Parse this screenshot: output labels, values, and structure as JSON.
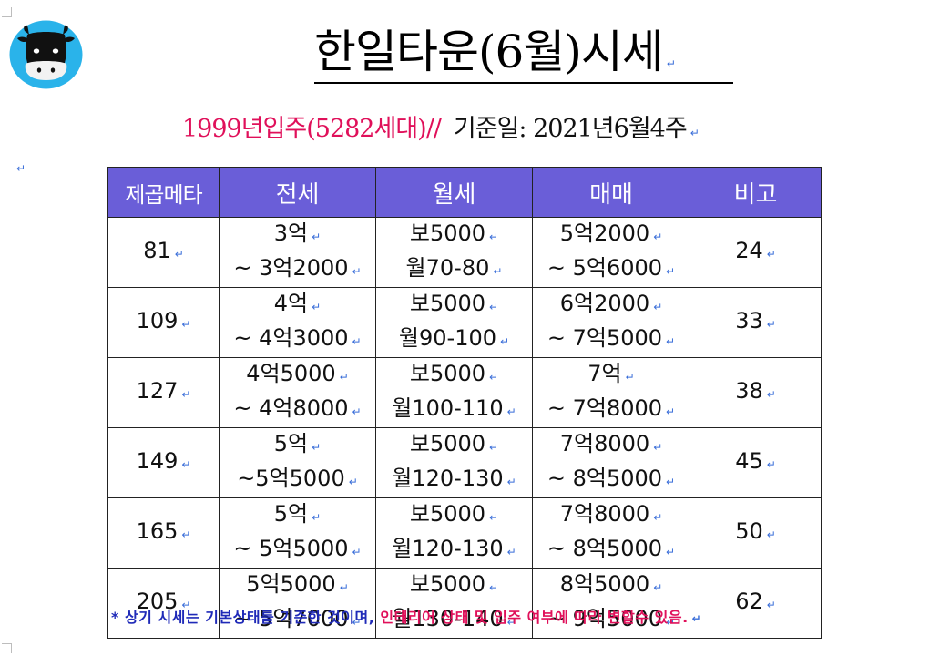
{
  "title": "한일타운(6월)시세",
  "paragraph_mark": "↵",
  "subtitle": {
    "move_in": "1999년입주(5282세대)//",
    "base_date": "기준일: 2021년6월4주"
  },
  "table": {
    "headers": [
      "제곱메타",
      "전세",
      "월세",
      "매매",
      "비고"
    ],
    "rows": [
      {
        "area": "81",
        "jeonse_1": "3억",
        "jeonse_2": "~ 3억2000",
        "wolse_1": "보5000",
        "wolse_2": "월70-80",
        "maemae_1": "5억2000",
        "maemae_2": "~ 5억6000",
        "note": "24"
      },
      {
        "area": "109",
        "jeonse_1": "4억",
        "jeonse_2": "~ 4억3000",
        "wolse_1": "보5000",
        "wolse_2": "월90-100",
        "maemae_1": "6억2000",
        "maemae_2": "~ 7억5000",
        "note": "33"
      },
      {
        "area": "127",
        "jeonse_1": "4억5000",
        "jeonse_2": "~ 4억8000",
        "wolse_1": "보5000",
        "wolse_2": "월100-110",
        "maemae_1": "7억",
        "maemae_2": "~ 7억8000",
        "note": "38"
      },
      {
        "area": "149",
        "jeonse_1": "5억",
        "jeonse_2": "~5억5000",
        "wolse_1": "보5000",
        "wolse_2": "월120-130",
        "maemae_1": "7억8000",
        "maemae_2": "~ 8억5000",
        "note": "45"
      },
      {
        "area": "165",
        "jeonse_1": "5억",
        "jeonse_2": "~ 5억5000",
        "wolse_1": "보5000",
        "wolse_2": "월120-130",
        "maemae_1": "7억8000",
        "maemae_2": "~ 8억5000",
        "note": "50"
      },
      {
        "area": "205",
        "jeonse_1": "5억5000",
        "jeonse_2": "~ 5억7000",
        "wolse_1": "보5000",
        "wolse_2": "월130-140",
        "maemae_1": "8억5000",
        "maemae_2": "~ 9억5000",
        "note": "62"
      }
    ]
  },
  "footnote": {
    "part1": "* 상기 시세는 기본상태를 기준한 것이며,",
    "part2": "인테리어 상태 및 입주 여부에 따라 변할수 있음."
  },
  "colors": {
    "header_bg": "#6a5ed8",
    "subtitle_accent": "#e0105a",
    "footnote_blue": "#1f2ab8",
    "footnote_red": "#e0105a",
    "logo_bg": "#2ab3ea"
  },
  "icons": [
    "cow-logo-icon",
    "paragraph-mark-icon"
  ]
}
